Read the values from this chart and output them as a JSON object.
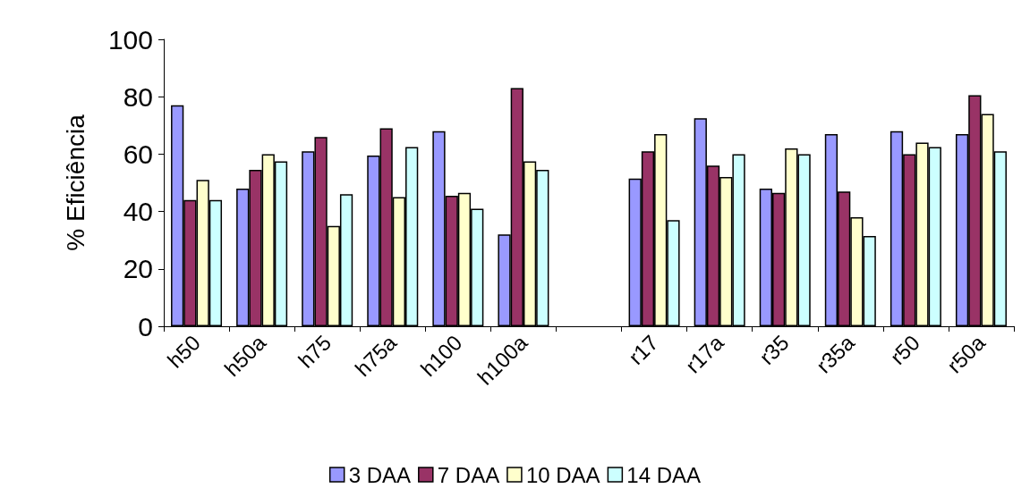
{
  "chart_data": {
    "type": "bar",
    "ylabel": "% Eficiência",
    "categories": [
      "h50",
      "h50a",
      "h75",
      "h75a",
      "h100",
      "h100a",
      null,
      "r17",
      "r17a",
      "r35",
      "r35a",
      "r50",
      "r50a"
    ],
    "series": [
      {
        "name": "3 DAA",
        "color": "#9999ff",
        "values": [
          77,
          48,
          61,
          59.5,
          68,
          32,
          null,
          51.5,
          72.5,
          48,
          67,
          68,
          67
        ]
      },
      {
        "name": "7 DAA",
        "color": "#993366",
        "values": [
          44,
          54.5,
          66,
          69,
          45.5,
          83,
          null,
          61,
          56,
          46.5,
          47,
          60,
          80.5
        ]
      },
      {
        "name": "10 DAA",
        "color": "#ffffcc",
        "values": [
          51,
          60,
          35,
          45,
          46.5,
          57.5,
          null,
          67,
          52,
          62,
          38,
          64,
          74
        ]
      },
      {
        "name": "14 DAA",
        "color": "#ccffff",
        "values": [
          44,
          57.5,
          46,
          62.5,
          41,
          54.5,
          null,
          37,
          60,
          60,
          31.5,
          62.5,
          61
        ]
      }
    ],
    "ylim": [
      0,
      100
    ],
    "yticks": [
      0,
      20,
      40,
      60,
      80,
      100
    ],
    "grid": false,
    "legend": "bottom"
  }
}
